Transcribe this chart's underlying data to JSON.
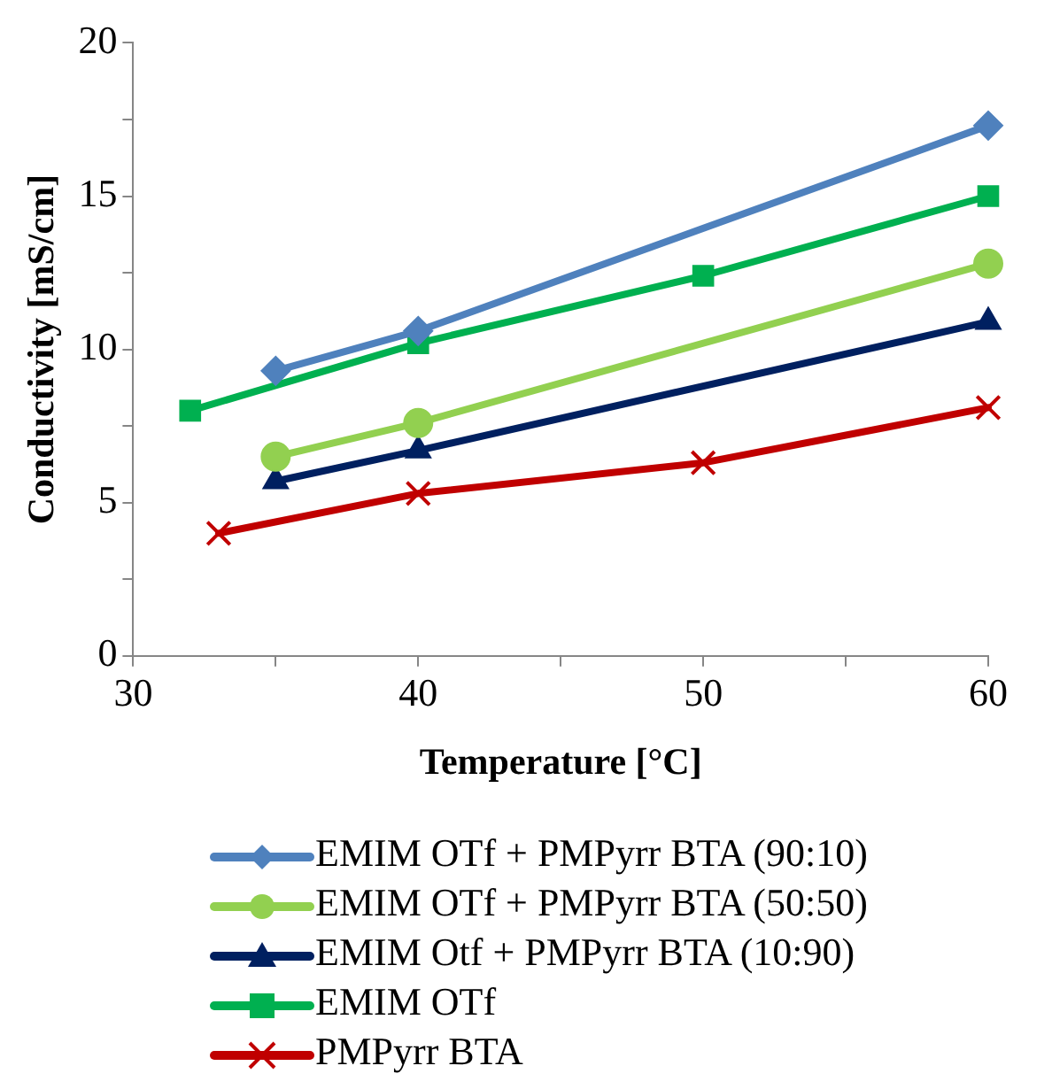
{
  "chart_data": {
    "type": "line",
    "xlabel": "Temperature [°C]",
    "ylabel": "Conductivity [mS/cm]",
    "xlim": [
      30,
      60
    ],
    "xticks": [
      30,
      {
        "value": 35,
        "label": null
      },
      40,
      {
        "value": 45,
        "label": null
      },
      50,
      {
        "value": 55,
        "label": null
      },
      60
    ],
    "ylim": [
      0,
      20
    ],
    "yticks": [
      0,
      {
        "value": 2.5,
        "label": null
      },
      5,
      {
        "value": 7.5,
        "label": null
      },
      10,
      {
        "value": 12.5,
        "label": null
      },
      15,
      {
        "value": 17.5,
        "label": null
      },
      20
    ],
    "grid": false,
    "legend": "bottom",
    "line_style": "solid",
    "series": [
      {
        "name": "EMIM OTf + PMPyrr BTA (90:10)",
        "color": "#4f81bd",
        "marker": "diamond",
        "x": [
          35,
          40,
          60
        ],
        "values": [
          9.3,
          10.6,
          17.3
        ]
      },
      {
        "name": "EMIM OTf + PMPyrr BTA (50:50)",
        "color": "#92d050",
        "marker": "circle",
        "x": [
          35,
          40,
          60
        ],
        "values": [
          6.5,
          7.6,
          12.8
        ]
      },
      {
        "name": "EMIM Otf + PMPyrr BTA (10:90)",
        "color": "#002060",
        "marker": "triangle",
        "x": [
          35,
          40,
          60
        ],
        "values": [
          5.7,
          6.7,
          10.9
        ]
      },
      {
        "name": "EMIM OTf",
        "color": "#00b050",
        "marker": "square",
        "x": [
          32,
          40,
          50,
          60
        ],
        "values": [
          8.0,
          10.2,
          12.4,
          15.0
        ]
      },
      {
        "name": "PMPyrr BTA",
        "color": "#c00000",
        "marker": "cross",
        "x": [
          33,
          40,
          50,
          60
        ],
        "values": [
          4.0,
          5.3,
          6.3,
          8.1
        ]
      }
    ]
  }
}
